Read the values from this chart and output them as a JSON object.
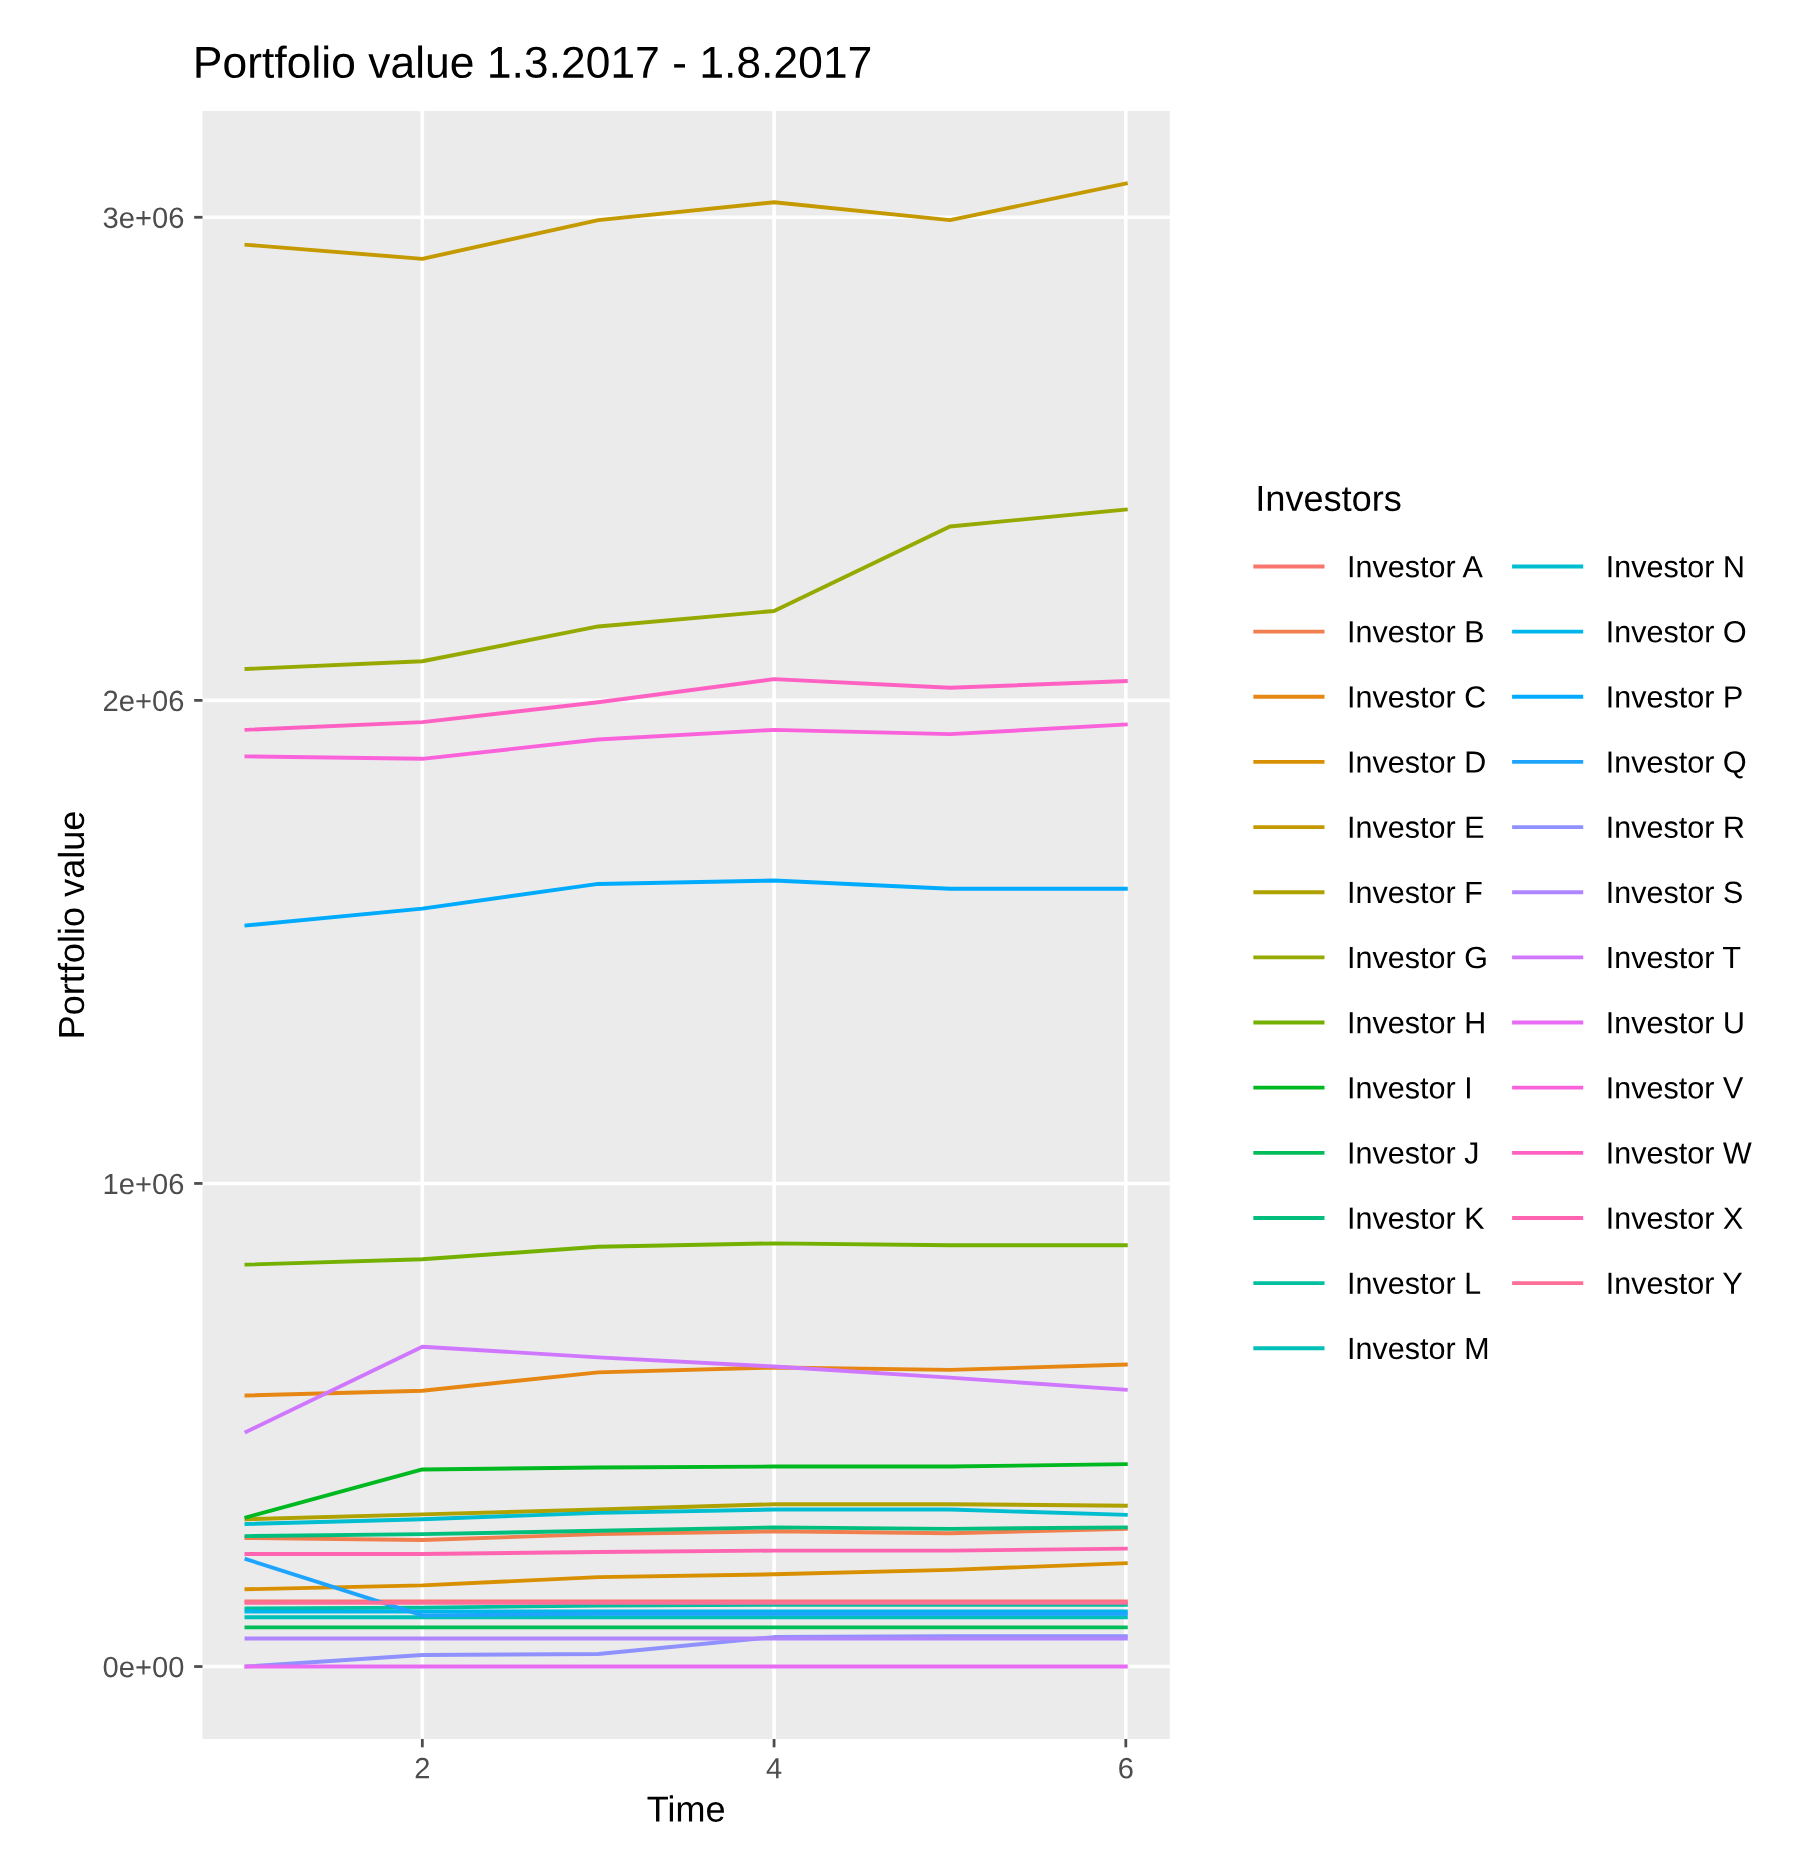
{
  "chart_data": {
    "type": "line",
    "title": "Portfolio value 1.3.2017 - 1.8.2017",
    "xlabel": "Time",
    "ylabel": "Portfolio value",
    "legend_title": "Investors",
    "x": [
      1,
      2,
      3,
      4,
      5,
      6
    ],
    "xlim": [
      0.75,
      6.25
    ],
    "xticks": [
      2,
      4,
      6
    ],
    "ylim": [
      -150000,
      3220000
    ],
    "yticks": [
      {
        "value": 0,
        "label": "0e+00"
      },
      {
        "value": 1000000,
        "label": "1e+06"
      },
      {
        "value": 2000000,
        "label": "2e+06"
      },
      {
        "value": 3000000,
        "label": "3e+06"
      }
    ],
    "grid": true,
    "legend": "right",
    "marker": "none",
    "line_style": "solid",
    "series": [
      {
        "name": "Investor A",
        "color": "#f8766d",
        "values": [
          135000,
          135000,
          135000,
          135000,
          135000,
          135000
        ]
      },
      {
        "name": "Investor B",
        "color": "#f07e4e",
        "values": [
          266000,
          262000,
          274000,
          280000,
          276000,
          285000
        ]
      },
      {
        "name": "Investor C",
        "color": "#e68613",
        "values": [
          561000,
          571000,
          609000,
          619000,
          614000,
          625000
        ]
      },
      {
        "name": "Investor D",
        "color": "#d89000",
        "values": [
          160000,
          168000,
          185000,
          191000,
          200000,
          214000
        ]
      },
      {
        "name": "Investor E",
        "color": "#c59900",
        "values": [
          2943000,
          2914000,
          2994000,
          3031000,
          2994000,
          3070000
        ]
      },
      {
        "name": "Investor F",
        "color": "#afa100",
        "values": [
          305000,
          315000,
          325000,
          336000,
          336000,
          333000
        ]
      },
      {
        "name": "Investor G",
        "color": "#96a900",
        "values": [
          2065000,
          2081000,
          2153000,
          2185000,
          2360000,
          2395000
        ]
      },
      {
        "name": "Investor H",
        "color": "#74b000",
        "values": [
          832000,
          843000,
          869000,
          876000,
          872000,
          872000
        ]
      },
      {
        "name": "Investor I",
        "color": "#00b81f",
        "values": [
          309000,
          408000,
          412000,
          414000,
          414000,
          419000
        ]
      },
      {
        "name": "Investor J",
        "color": "#00bc59",
        "values": [
          81000,
          81000,
          81000,
          81000,
          81000,
          81000
        ]
      },
      {
        "name": "Investor K",
        "color": "#00bf7d",
        "values": [
          270000,
          274000,
          281000,
          288000,
          285000,
          288000
        ]
      },
      {
        "name": "Investor L",
        "color": "#00c0a0",
        "values": [
          120000,
          122000,
          126000,
          128000,
          128000,
          128000
        ]
      },
      {
        "name": "Investor M",
        "color": "#00c0b8",
        "values": [
          102000,
          102000,
          102000,
          102000,
          102000,
          102000
        ]
      },
      {
        "name": "Investor N",
        "color": "#00bdd0",
        "values": [
          295000,
          305000,
          318000,
          325000,
          325000,
          314000
        ]
      },
      {
        "name": "Investor O",
        "color": "#00b6eb",
        "values": [
          114000,
          114000,
          114000,
          114000,
          114000,
          114000
        ]
      },
      {
        "name": "Investor P",
        "color": "#00abfd",
        "values": [
          1534000,
          1569000,
          1620000,
          1627000,
          1610000,
          1610000
        ]
      },
      {
        "name": "Investor Q",
        "color": "#1ea4ff",
        "values": [
          222000,
          106000,
          109000,
          109000,
          109000,
          109000
        ]
      },
      {
        "name": "Investor R",
        "color": "#8f91ff",
        "values": [
          0,
          24000,
          26000,
          61000,
          63000,
          63000
        ]
      },
      {
        "name": "Investor S",
        "color": "#b086ff",
        "values": [
          58000,
          58000,
          58000,
          58000,
          58000,
          58000
        ]
      },
      {
        "name": "Investor T",
        "color": "#cf78ff",
        "values": [
          486000,
          662000,
          640000,
          621000,
          598000,
          573000
        ]
      },
      {
        "name": "Investor U",
        "color": "#e76bf3",
        "values": [
          0,
          0,
          0,
          0,
          0,
          0
        ]
      },
      {
        "name": "Investor V",
        "color": "#fa62db",
        "values": [
          1884000,
          1879000,
          1919000,
          1939000,
          1930000,
          1950000
        ]
      },
      {
        "name": "Investor W",
        "color": "#ff61c3",
        "values": [
          1939000,
          1955000,
          1996000,
          2044000,
          2026000,
          2040000
        ]
      },
      {
        "name": "Investor X",
        "color": "#ff64b0",
        "values": [
          233000,
          233000,
          237000,
          240000,
          240000,
          244000
        ]
      },
      {
        "name": "Investor Y",
        "color": "#fd6f96",
        "values": [
          132000,
          132000,
          132000,
          132000,
          132000,
          132000
        ]
      }
    ]
  }
}
